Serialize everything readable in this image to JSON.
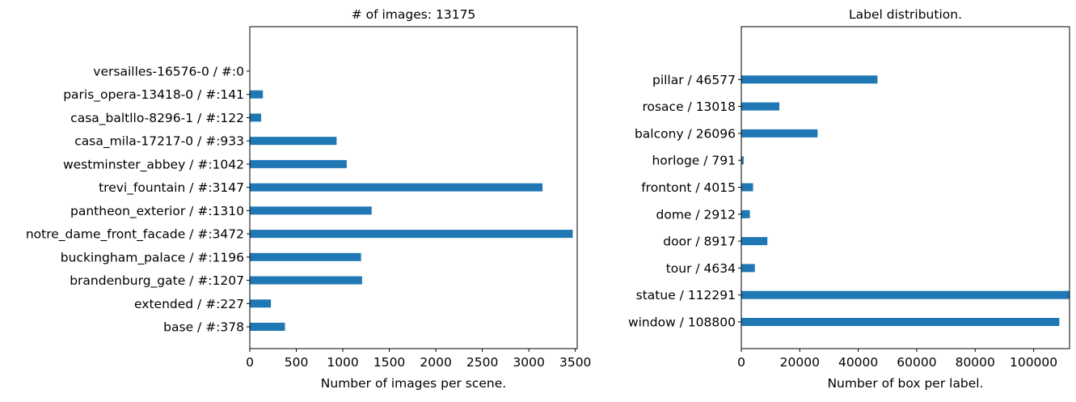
{
  "chart_data": [
    {
      "type": "bar",
      "orientation": "horizontal",
      "title": "# of images: 13175",
      "xlabel": "Number of images per scene.",
      "ylabel": "",
      "xlim": [
        0,
        3520
      ],
      "xticks": [
        0,
        500,
        1000,
        1500,
        2000,
        2500,
        3000,
        3500
      ],
      "grid": false,
      "color": "#1f77b4",
      "categories": [
        "base / #:378",
        "extended / #:227",
        "brandenburg_gate / #:1207",
        "buckingham_palace / #:1196",
        "notre_dame_front_facade / #:3472",
        "pantheon_exterior / #:1310",
        "trevi_fountain / #:3147",
        "westminster_abbey / #:1042",
        "casa_mila-17217-0 / #:933",
        "casa_baltllo-8296-1 / #:122",
        "paris_opera-13418-0 / #:141",
        "versailles-16576-0 / #:0"
      ],
      "values": [
        378,
        227,
        1207,
        1196,
        3472,
        1310,
        3147,
        1042,
        933,
        122,
        141,
        0
      ]
    },
    {
      "type": "bar",
      "orientation": "horizontal",
      "title": "Label distribution.",
      "xlabel": "Number of box per label.",
      "ylabel": "",
      "xlim": [
        0,
        112291
      ],
      "xticks": [
        0,
        20000,
        40000,
        60000,
        80000,
        100000
      ],
      "grid": false,
      "color": "#1f77b4",
      "categories": [
        "window / 108800",
        "statue / 112291",
        "tour / 4634",
        "door / 8917",
        "dome / 2912",
        "frontont / 4015",
        "horloge / 791",
        "balcony / 26096",
        "rosace / 13018",
        "pillar / 46577"
      ],
      "values": [
        108800,
        112291,
        4634,
        8917,
        2912,
        4015,
        791,
        26096,
        13018,
        46577
      ]
    }
  ]
}
